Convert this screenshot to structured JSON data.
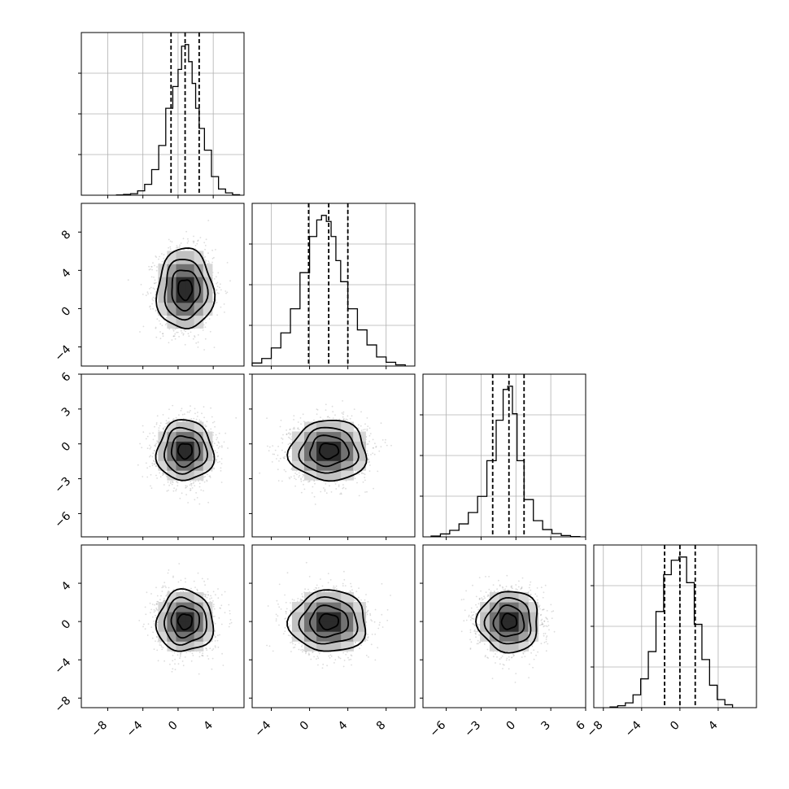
{
  "chart_data": {
    "type": "corner",
    "parameters": [
      {
        "ticks": [
          -8,
          -4,
          0,
          4
        ],
        "range": [
          -11,
          7.5
        ],
        "quantiles": [
          -0.8,
          0.8,
          2.4
        ],
        "hist_x": [
          -6.6,
          -5.8,
          -5.0,
          -4.2,
          -3.4,
          -2.6,
          -1.8,
          -1.0,
          -0.2,
          0.2,
          0.6,
          1.0,
          1.4,
          1.8,
          2.2,
          2.6,
          3.4,
          4.2,
          5.0,
          5.8,
          6.6
        ],
        "hist_counts": [
          2,
          5,
          10,
          28,
          70,
          165,
          320,
          560,
          700,
          810,
          960,
          970,
          860,
          720,
          560,
          430,
          290,
          120,
          40,
          15,
          3
        ]
      },
      {
        "ticks": [
          -4,
          0,
          4,
          8
        ],
        "range": [
          -6,
          11
        ],
        "quantiles": [
          -0.1,
          2.0,
          4.0
        ],
        "hist_x": [
          -5.5,
          -4.5,
          -3.5,
          -2.5,
          -1.5,
          -0.5,
          0.5,
          1.0,
          1.5,
          2.0,
          2.5,
          3.0,
          3.5,
          4.5,
          5.5,
          6.5,
          7.5,
          8.5,
          9.5
        ],
        "hist_counts": [
          20,
          50,
          120,
          220,
          380,
          620,
          860,
          970,
          1000,
          960,
          860,
          700,
          560,
          380,
          240,
          140,
          60,
          25,
          8
        ]
      },
      {
        "ticks": [
          -6,
          -3,
          0,
          3,
          6
        ],
        "range": [
          -8,
          6
        ],
        "quantiles": [
          -2.0,
          -0.6,
          0.7
        ],
        "hist_x": [
          -6.9,
          -6.1,
          -5.3,
          -4.5,
          -3.7,
          -2.9,
          -2.1,
          -1.3,
          -0.9,
          -0.5,
          -0.1,
          0.3,
          1.1,
          1.9,
          2.7,
          3.5,
          4.3,
          5.1
        ],
        "hist_counts": [
          5,
          18,
          40,
          80,
          150,
          250,
          470,
          720,
          910,
          930,
          760,
          470,
          230,
          100,
          45,
          20,
          8,
          2
        ]
      },
      {
        "ticks": [
          -8,
          -4,
          0,
          4
        ],
        "range": [
          -9,
          8
        ],
        "quantiles": [
          -1.6,
          0.0,
          1.6
        ],
        "hist_x": [
          -6.9,
          -6.1,
          -5.3,
          -4.5,
          -3.7,
          -2.9,
          -2.1,
          -1.3,
          -0.5,
          0.3,
          1.1,
          1.9,
          2.7,
          3.5,
          4.3,
          5.1
        ],
        "hist_counts": [
          4,
          12,
          30,
          80,
          180,
          350,
          600,
          830,
          920,
          940,
          780,
          520,
          300,
          140,
          50,
          18
        ]
      }
    ],
    "pairs": [
      {
        "row": 1,
        "col": 0,
        "center": [
          0.8,
          2.0
        ],
        "spread": [
          1.6,
          2.1
        ]
      },
      {
        "row": 2,
        "col": 0,
        "center": [
          0.8,
          -0.6
        ],
        "spread": [
          1.6,
          1.3
        ]
      },
      {
        "row": 2,
        "col": 1,
        "center": [
          2.0,
          -0.6
        ],
        "spread": [
          2.0,
          1.3
        ]
      },
      {
        "row": 3,
        "col": 0,
        "center": [
          0.8,
          0.0
        ],
        "spread": [
          1.6,
          1.6
        ]
      },
      {
        "row": 3,
        "col": 1,
        "center": [
          2.0,
          0.0
        ],
        "spread": [
          2.0,
          1.6
        ]
      },
      {
        "row": 3,
        "col": 2,
        "center": [
          -0.6,
          0.0
        ],
        "spread": [
          1.3,
          1.6
        ]
      }
    ],
    "contour_levels": [
      0.5,
      1.0,
      1.5,
      2.0
    ],
    "scatter_points_per_panel": 1800,
    "grid": true,
    "colors": {
      "line": "#000000",
      "scatter": "#9a9a9a",
      "grid": "#b0b0b0"
    }
  }
}
